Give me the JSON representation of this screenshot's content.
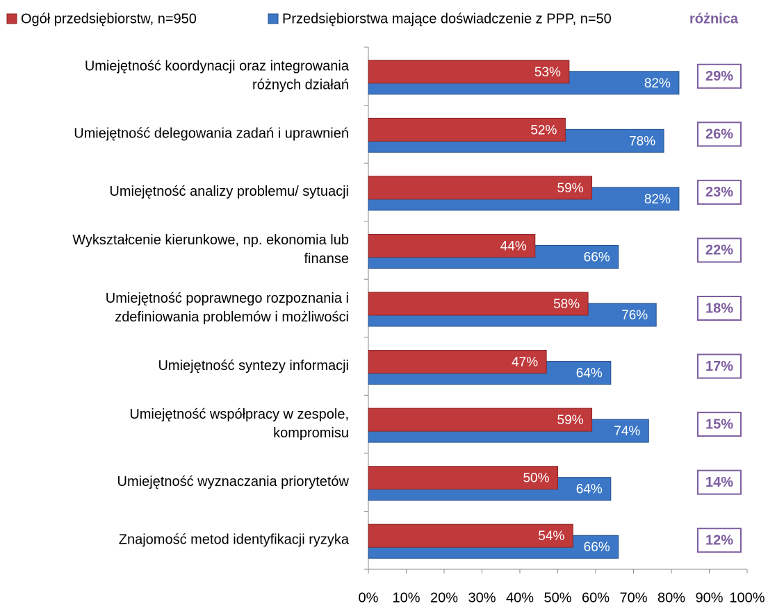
{
  "chart_data": {
    "type": "bar",
    "orientation": "horizontal",
    "categories": [
      [
        "Umiejętność koordynacji  oraz integrowania",
        "różnych  działań"
      ],
      [
        "Umiejętność delegowania  zadań i uprawnień"
      ],
      [
        "Umiejętność analizy  problemu/ sytuacji"
      ],
      [
        "Wykształcenie kierunkowe,  np. ekonomia lub",
        "finanse"
      ],
      [
        "Umiejętność poprawnego  rozpoznania i",
        "zdefiniowania  problemów i możliwości"
      ],
      [
        "Umiejętność syntezy  informacji"
      ],
      [
        "Umiejętność współpracy w  zespole,",
        "kompromisu"
      ],
      [
        "Umiejętność wyznaczania  priorytetów"
      ],
      [
        "Znajomość metod  identyfikacji ryzyka"
      ]
    ],
    "series": [
      {
        "name": "Ogół przedsiębiorstw, n=950",
        "color": "#c0393b",
        "values": [
          53,
          52,
          59,
          44,
          58,
          47,
          59,
          50,
          54
        ],
        "value_labels": [
          "53%",
          "52%",
          "59%",
          "44%",
          "58%",
          "47%",
          "59%",
          "50%",
          "54%"
        ]
      },
      {
        "name": "Przedsiębiorstwa mające doświadczenie z PPP, n=50",
        "color": "#3b77c6",
        "values": [
          82,
          78,
          82,
          66,
          76,
          64,
          74,
          64,
          66
        ],
        "value_labels": [
          "82%",
          "78%",
          "82%",
          "66%",
          "76%",
          "64%",
          "74%",
          "64%",
          "66%"
        ]
      }
    ],
    "difference": {
      "label": "różnica",
      "color": "#7e5ea0",
      "values": [
        29,
        26,
        23,
        22,
        18,
        17,
        15,
        14,
        12
      ],
      "value_labels": [
        "29%",
        "26%",
        "23%",
        "22%",
        "18%",
        "17%",
        "15%",
        "14%",
        "12%"
      ]
    },
    "xlim": [
      0,
      100
    ],
    "xticks": [
      {
        "value": 0,
        "label": "0%"
      },
      {
        "value": 10,
        "label": "10%"
      },
      {
        "value": 20,
        "label": "20%"
      },
      {
        "value": 30,
        "label": "30%"
      },
      {
        "value": 40,
        "label": "40%"
      },
      {
        "value": 50,
        "label": "50%"
      },
      {
        "value": 60,
        "label": "60%"
      },
      {
        "value": 70,
        "label": "70%"
      },
      {
        "value": 80,
        "label": "80%"
      },
      {
        "value": 90,
        "label": "90%"
      },
      {
        "value": 100,
        "label": "100%"
      }
    ],
    "legend": "top"
  }
}
